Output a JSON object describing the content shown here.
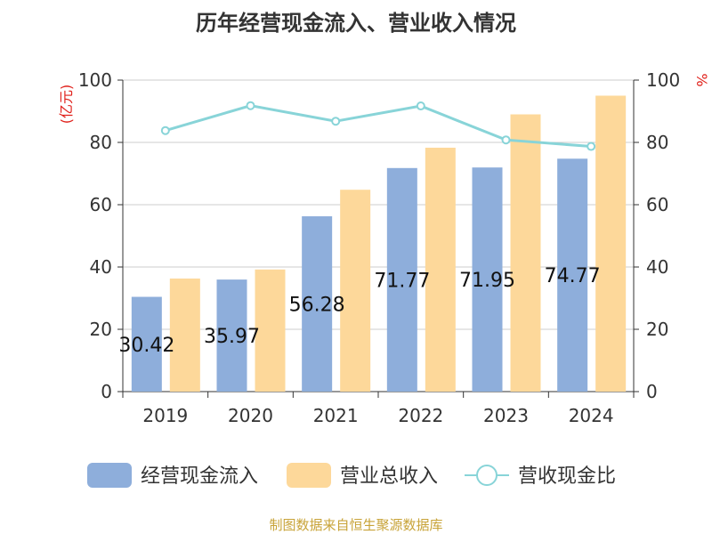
{
  "chart_data": {
    "type": "bar",
    "title": "历年经营现金流入、营业收入情况",
    "left_axis_unit": "(亿元)",
    "right_axis_unit": "%",
    "categories": [
      "2019",
      "2020",
      "2021",
      "2022",
      "2023",
      "2024"
    ],
    "ylim_left": [
      0,
      100
    ],
    "ylim_right": [
      0,
      100
    ],
    "y_ticks": [
      "0",
      "20",
      "40",
      "60",
      "80",
      "100"
    ],
    "grid": true,
    "series": [
      {
        "name": "经营现金流入",
        "kind": "bar",
        "axis": "left",
        "color": "#8eaedb",
        "values": [
          30.42,
          35.97,
          56.28,
          71.77,
          71.95,
          74.77
        ],
        "labels": [
          "30.42",
          "35.97",
          "56.28",
          "71.77",
          "71.95",
          "74.77"
        ]
      },
      {
        "name": "营业总收入",
        "kind": "bar",
        "axis": "left",
        "color": "#fdd89a",
        "values": [
          36.3,
          39.2,
          64.8,
          78.3,
          89.0,
          95.0
        ]
      },
      {
        "name": "营收现金比",
        "kind": "line",
        "axis": "right",
        "color": "#88d4d8",
        "values": [
          83.8,
          91.8,
          86.8,
          91.7,
          80.8,
          78.7
        ]
      }
    ],
    "legend_position": "bottom",
    "source": "制图数据来自恒生聚源数据库"
  }
}
